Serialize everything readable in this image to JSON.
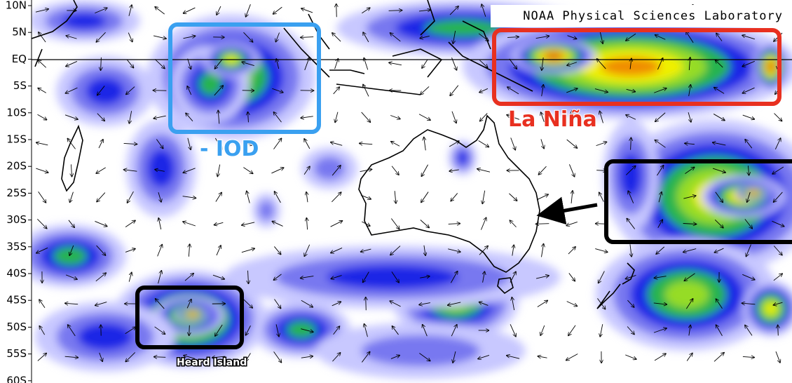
{
  "header": {
    "credit": "NOAA Physical Sciences Laboratory"
  },
  "lat_labels": [
    "10N",
    "5N",
    "EQ",
    "5S",
    "10S",
    "15S",
    "20S",
    "25S",
    "30S",
    "35S",
    "40S",
    "45S",
    "50S",
    "55S",
    "60S"
  ],
  "annotations": {
    "la_nina": "La Niña",
    "iod": "- IOD",
    "heard_island": "Heard Island"
  }
}
